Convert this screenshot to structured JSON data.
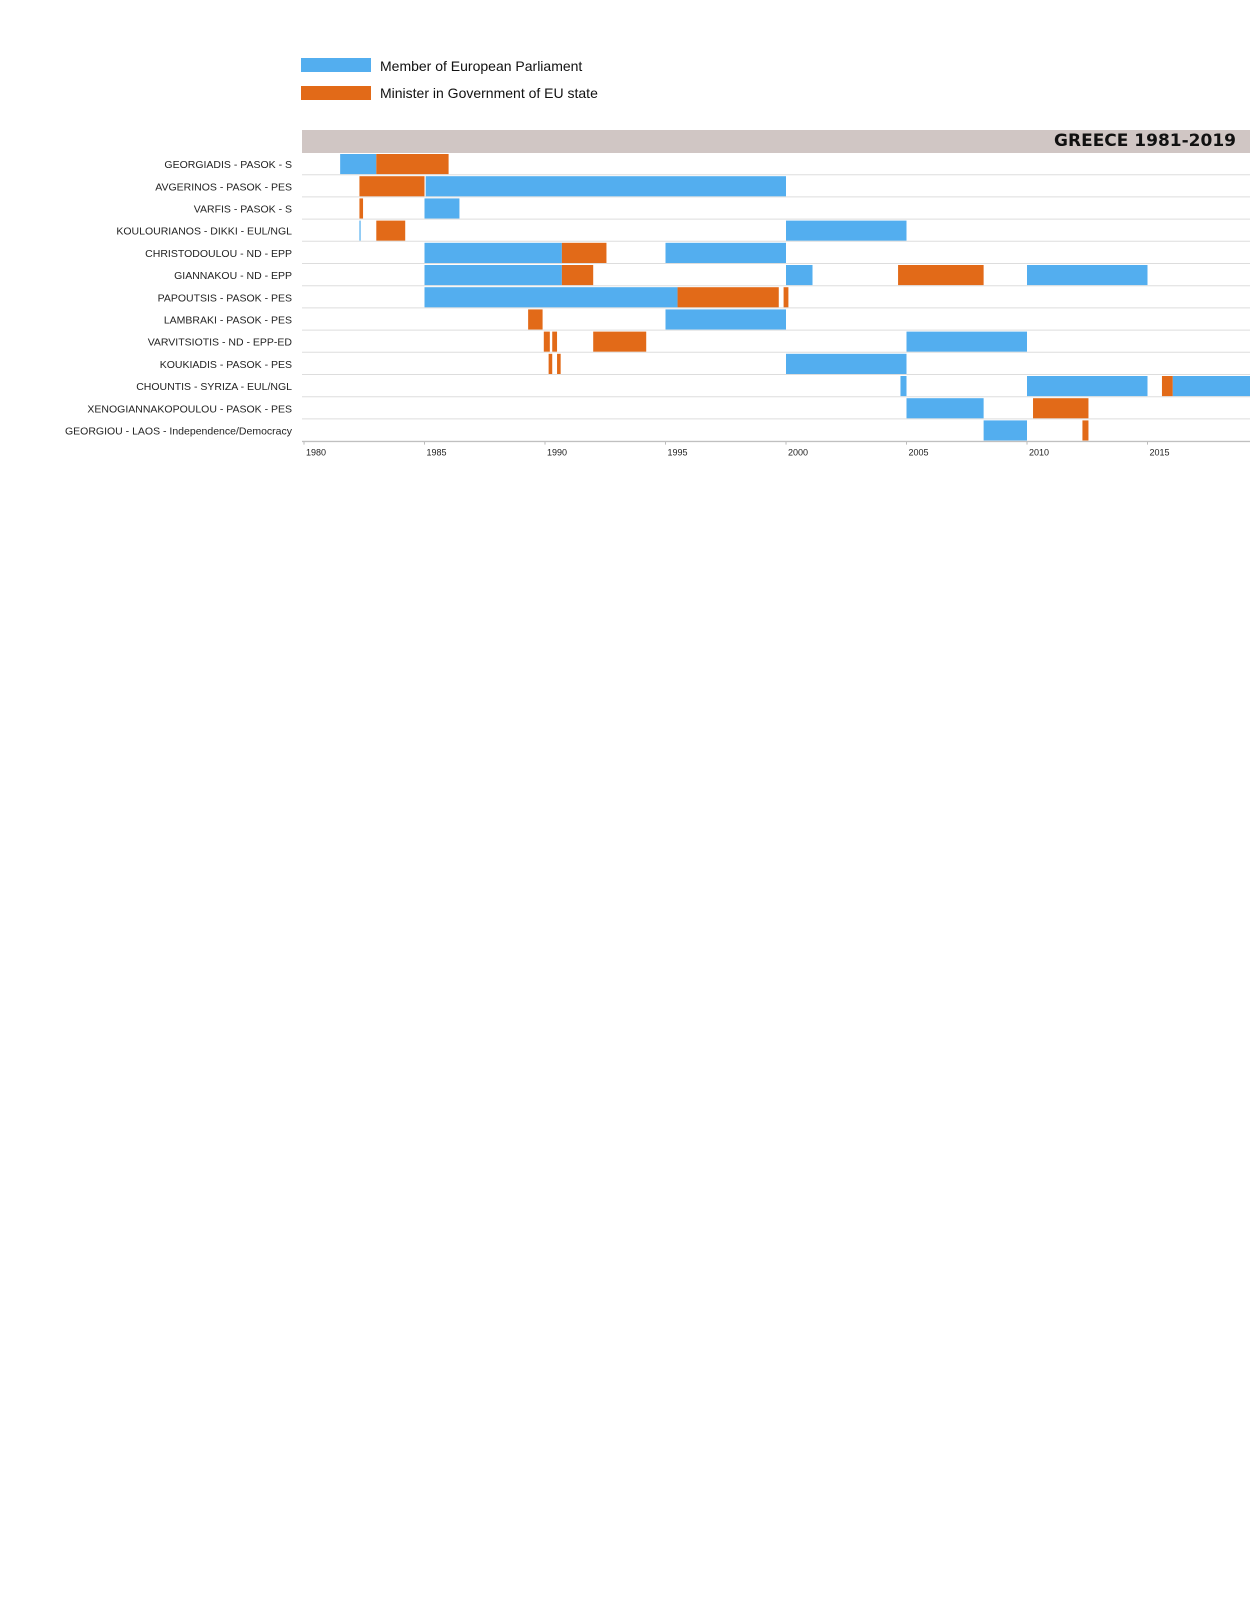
{
  "chart_data": {
    "type": "timeline",
    "title": "GREECE 1981-2019",
    "xlim": [
      1980,
      2019.5
    ],
    "x_ticks": [
      1980,
      1985,
      1990,
      1995,
      2000,
      2005,
      2010,
      2015
    ],
    "grid": false,
    "legend_position": "top-left",
    "colors": {
      "mep": "#53AEEF",
      "minister": "#E26A18",
      "title_band": "#D0C6C4",
      "row_line": "#DDDDDD"
    },
    "series": [
      {
        "key": "mep",
        "name": "Member of European Parliament"
      },
      {
        "key": "minister",
        "name": "Minister in Government of EU state"
      }
    ],
    "rows": [
      {
        "label": "GEORGIADIS - PASOK - S",
        "segments": [
          {
            "type": "mep",
            "start": 1981.5,
            "end": 1983.0
          },
          {
            "type": "minister",
            "start": 1983.0,
            "end": 1986.0
          }
        ]
      },
      {
        "label": "AVGERINOS - PASOK - PES",
        "segments": [
          {
            "type": "minister",
            "start": 1982.3,
            "end": 1985.0
          },
          {
            "type": "mep",
            "start": 1985.05,
            "end": 2000.0
          }
        ]
      },
      {
        "label": "VARFIS - PASOK - S",
        "segments": [
          {
            "type": "minister",
            "start": 1982.3,
            "end": 1982.45
          },
          {
            "type": "mep",
            "start": 1985.0,
            "end": 1986.45
          }
        ]
      },
      {
        "label": "KOULOURIANOS - DIKKI - EUL/NGL",
        "segments": [
          {
            "type": "mep",
            "start": 1982.3,
            "end": 1982.35
          },
          {
            "type": "minister",
            "start": 1983.0,
            "end": 1984.2
          },
          {
            "type": "mep",
            "start": 2000.0,
            "end": 2005.0
          }
        ]
      },
      {
        "label": "CHRISTODOULOU - ND - EPP",
        "segments": [
          {
            "type": "mep",
            "start": 1985.0,
            "end": 1990.7
          },
          {
            "type": "minister",
            "start": 1990.7,
            "end": 1992.55
          },
          {
            "type": "mep",
            "start": 1995.0,
            "end": 2000.0
          }
        ]
      },
      {
        "label": "GIANNAKOU - ND - EPP",
        "segments": [
          {
            "type": "mep",
            "start": 1985.0,
            "end": 1990.7
          },
          {
            "type": "minister",
            "start": 1990.7,
            "end": 1992.0
          },
          {
            "type": "mep",
            "start": 2000.0,
            "end": 2001.1
          },
          {
            "type": "minister",
            "start": 2004.65,
            "end": 2008.2
          },
          {
            "type": "mep",
            "start": 2010.0,
            "end": 2015.0
          }
        ]
      },
      {
        "label": "PAPOUTSIS - PASOK - PES",
        "segments": [
          {
            "type": "mep",
            "start": 1985.0,
            "end": 1995.5
          },
          {
            "type": "minister",
            "start": 1995.5,
            "end": 1999.7
          },
          {
            "type": "minister",
            "start": 1999.9,
            "end": 2000.1
          }
        ]
      },
      {
        "label": "LAMBRAKI - PASOK - PES",
        "segments": [
          {
            "type": "minister",
            "start": 1989.3,
            "end": 1989.9
          },
          {
            "type": "mep",
            "start": 1995.0,
            "end": 2000.0
          }
        ]
      },
      {
        "label": "VARVITSIOTIS - ND - EPP-ED",
        "segments": [
          {
            "type": "minister",
            "start": 1989.95,
            "end": 1990.2
          },
          {
            "type": "minister",
            "start": 1990.3,
            "end": 1990.5
          },
          {
            "type": "minister",
            "start": 1992.0,
            "end": 1994.2
          },
          {
            "type": "mep",
            "start": 2005.0,
            "end": 2010.0
          }
        ]
      },
      {
        "label": "KOUKIADIS - PASOK - PES",
        "segments": [
          {
            "type": "minister",
            "start": 1990.15,
            "end": 1990.3
          },
          {
            "type": "minister",
            "start": 1990.5,
            "end": 1990.65
          },
          {
            "type": "mep",
            "start": 2000.0,
            "end": 2005.0
          }
        ]
      },
      {
        "label": "CHOUNTIS - SYRIZA - EUL/NGL",
        "segments": [
          {
            "type": "mep",
            "start": 2004.75,
            "end": 2005.0
          },
          {
            "type": "mep",
            "start": 2010.0,
            "end": 2015.0
          },
          {
            "type": "minister",
            "start": 2015.6,
            "end": 2016.05
          },
          {
            "type": "mep",
            "start": 2016.05,
            "end": 2019.5
          }
        ]
      },
      {
        "label": "XENOGIANNAKOPOULOU - PASOK - PES",
        "segments": [
          {
            "type": "mep",
            "start": 2005.0,
            "end": 2008.2
          },
          {
            "type": "minister",
            "start": 2010.25,
            "end": 2012.55
          }
        ]
      },
      {
        "label": "GEORGIOU - LAOS - Independence/Democracy",
        "segments": [
          {
            "type": "mep",
            "start": 2008.2,
            "end": 2010.0
          },
          {
            "type": "minister",
            "start": 2012.3,
            "end": 2012.55
          }
        ]
      }
    ]
  }
}
